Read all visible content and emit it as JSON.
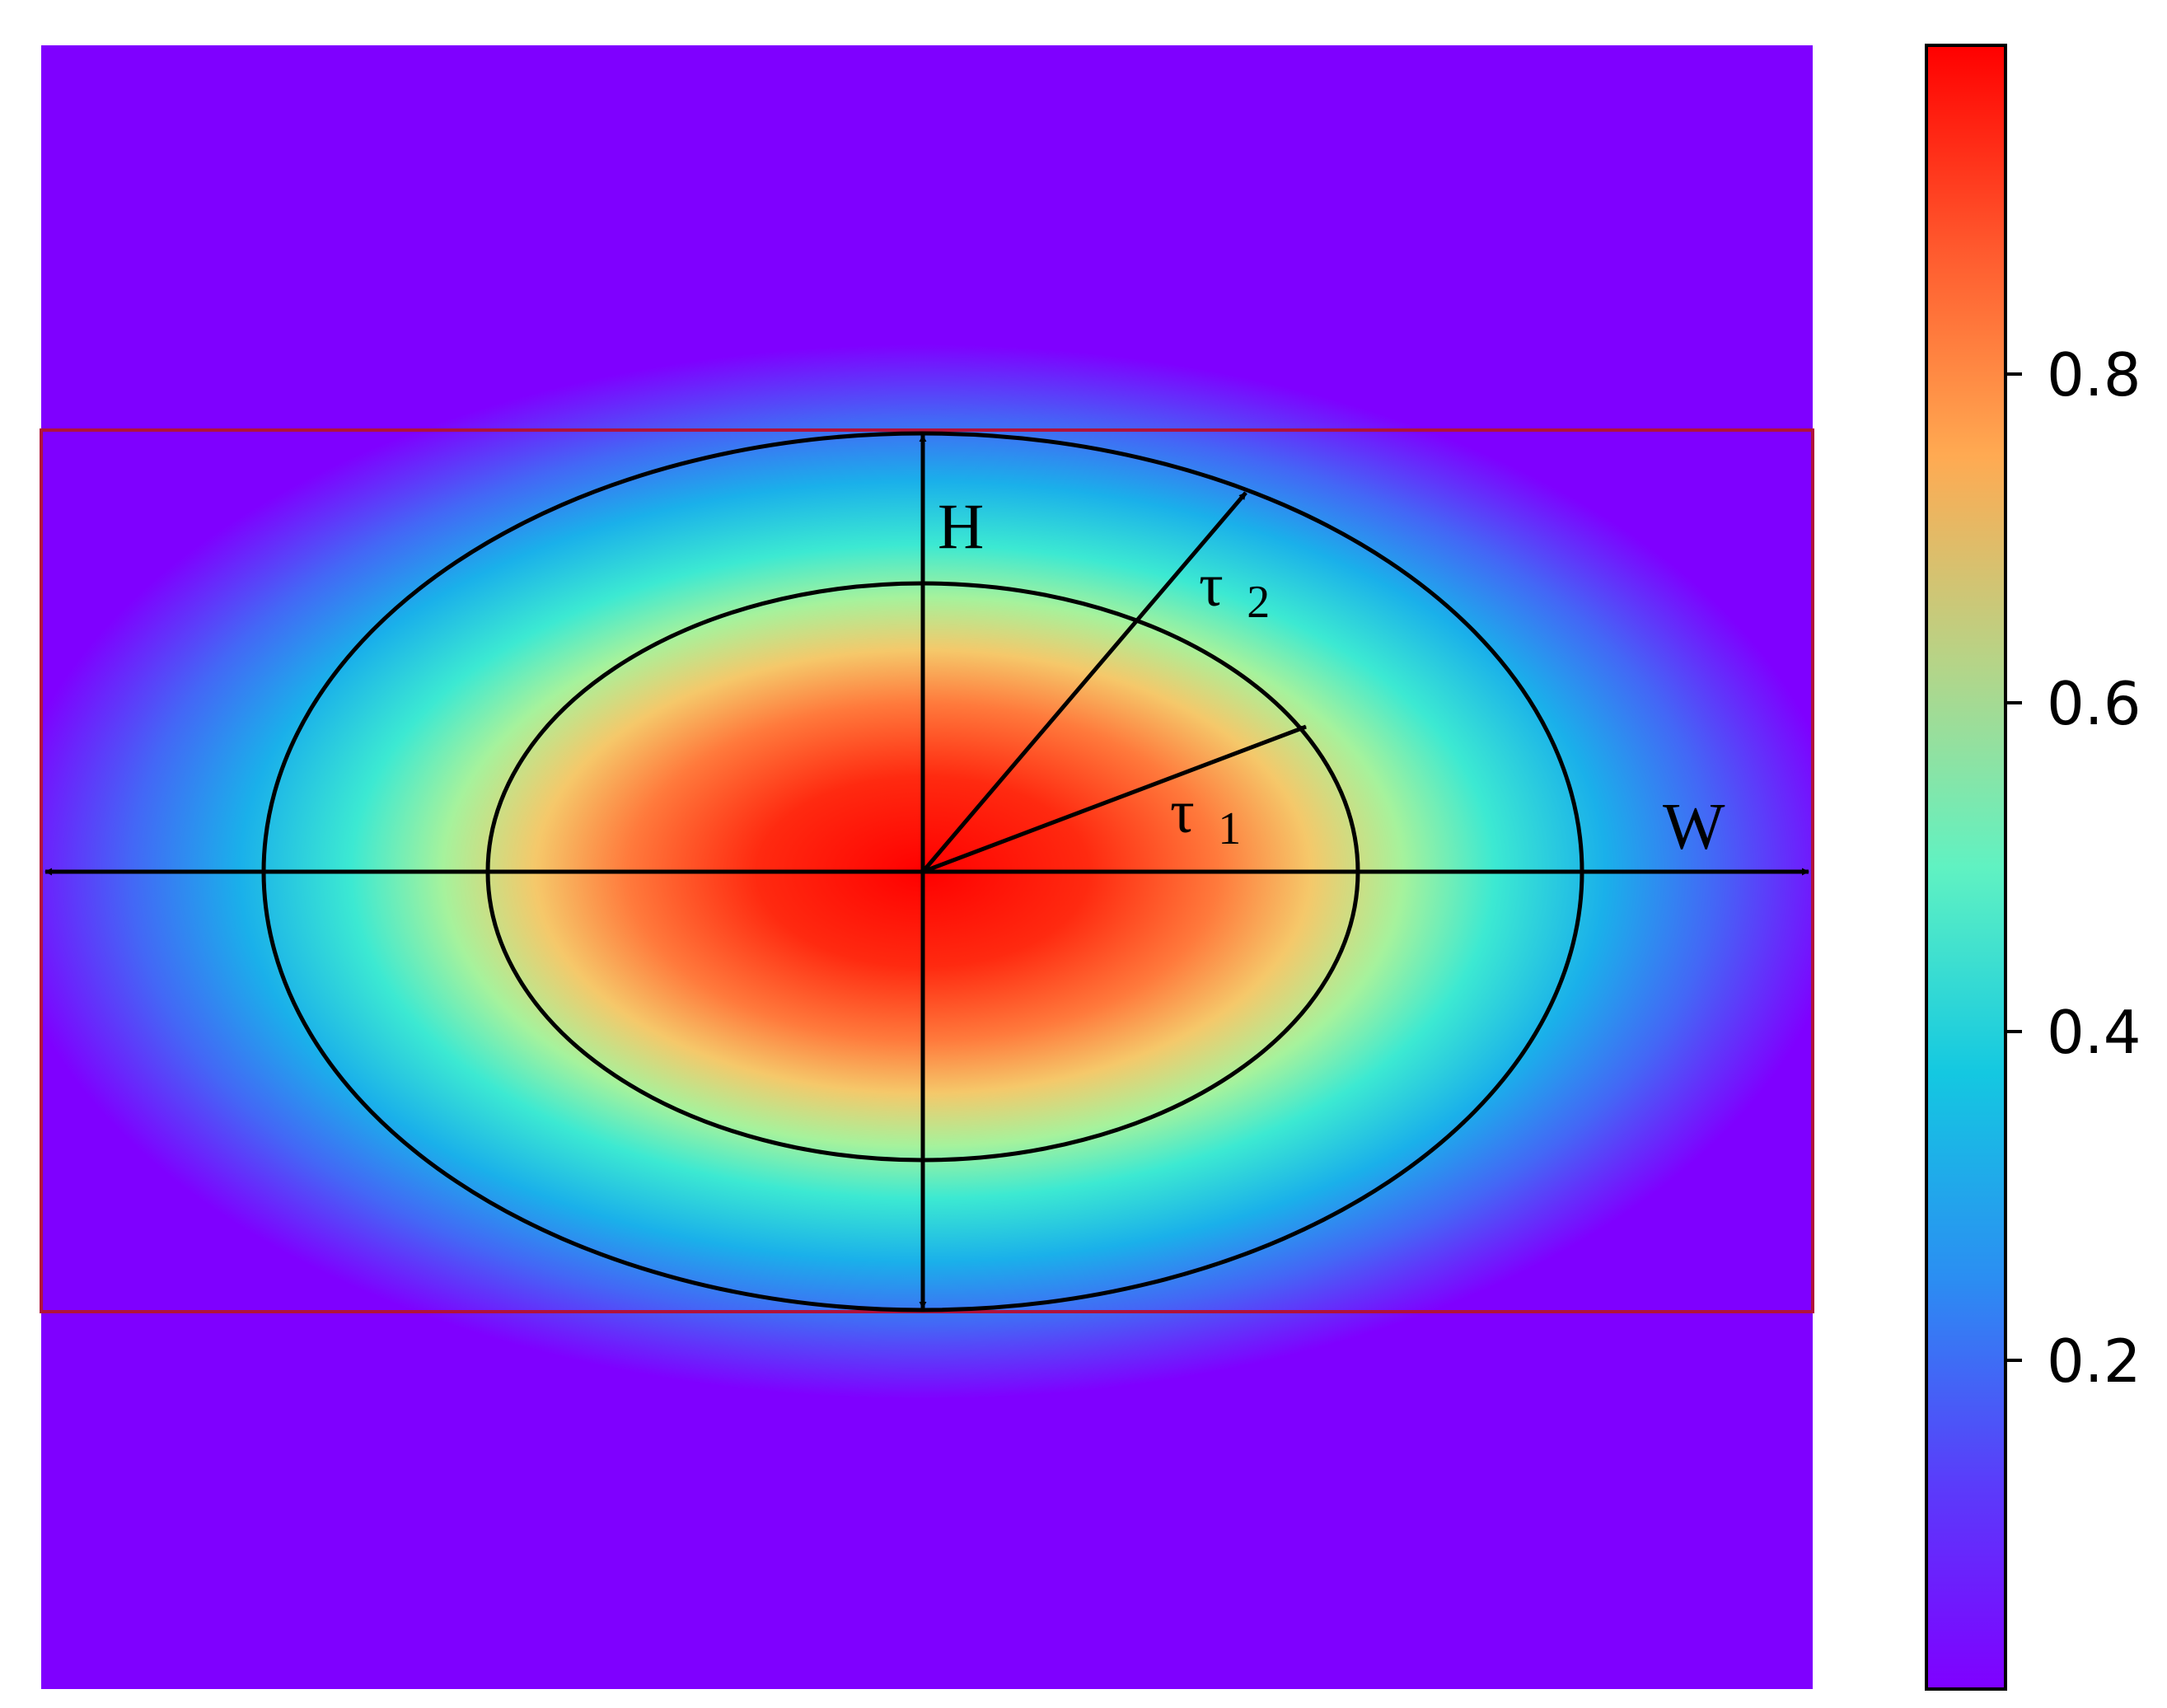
{
  "labels": {
    "height": "H",
    "width": "W",
    "tau2": "τ",
    "tau2_sub": "2",
    "tau1": "τ",
    "tau1_sub": "1"
  },
  "colorbar": {
    "ticks": [
      {
        "value": 0.2,
        "label": "0.2"
      },
      {
        "value": 0.4,
        "label": "0.4"
      },
      {
        "value": 0.6,
        "label": "0.6"
      },
      {
        "value": 0.8,
        "label": "0.8"
      }
    ],
    "min": 0.0,
    "max": 1.0,
    "colormap": [
      "#7f00ff",
      "#3d74f6",
      "#09c6e4",
      "#42f9cf",
      "#86f1a6",
      "#c4c47a",
      "#ffa54e",
      "#ff5f2a",
      "#ff0000"
    ]
  },
  "colors": {
    "background": "#7f00ff",
    "bbox_outline": "#b0123c",
    "ellipse_stroke": "#000000",
    "arrow": "#000000"
  }
}
